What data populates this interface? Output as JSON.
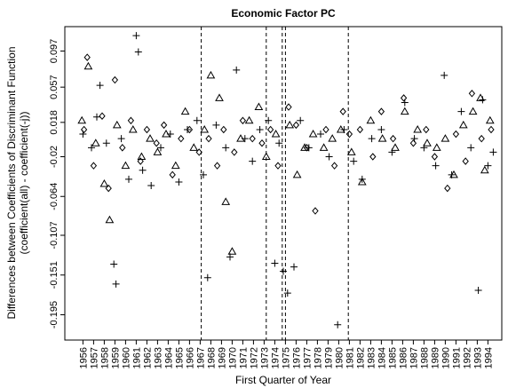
{
  "chart_data": {
    "type": "scatter",
    "title": "Economic Factor PC",
    "x_label": "First Quarter of Year",
    "y_label": [
      "Differences between Coefficients of Discriminant Function",
      "(coefficient(all) - coefficient(-j))"
    ],
    "xlim": [
      1954.3,
      1995.3
    ],
    "ylim": [
      -0.223,
      0.124
    ],
    "xticks": [
      1956,
      1957,
      1958,
      1959,
      1960,
      1961,
      1962,
      1963,
      1964,
      1965,
      1966,
      1967,
      1968,
      1969,
      1970,
      1971,
      1972,
      1973,
      1974,
      1975,
      1976,
      1977,
      1978,
      1979,
      1980,
      1981,
      1982,
      1983,
      1984,
      1985,
      1986,
      1987,
      1988,
      1989,
      1990,
      1991,
      1992,
      1993,
      1994
    ],
    "yticks": [
      -0.195,
      -0.151,
      -0.107,
      -0.064,
      -0.02,
      0.018,
      0.057,
      0.097
    ],
    "vlines": [
      1967.1,
      1973.2,
      1974.7,
      1975.0,
      1980.9
    ],
    "series": [
      {
        "marker": "plus",
        "color": "#000000",
        "x": [
          1956.0,
          1956.8,
          1957.3,
          1957.6,
          1958.2,
          1958.9,
          1959.1,
          1959.6,
          1960.3,
          1961.0,
          1961.2,
          1961.6,
          1962.4,
          1963.3,
          1964.2,
          1965.0,
          1965.8,
          1966.7,
          1967.3,
          1967.7,
          1968.5,
          1969.4,
          1969.8,
          1970.4,
          1971.2,
          1971.9,
          1972.6,
          1973.4,
          1974.0,
          1974.4,
          1974.8,
          1975.2,
          1975.8,
          1976.4,
          1977.2,
          1978.3,
          1979.1,
          1979.9,
          1980.5,
          1981.4,
          1982.2,
          1983.1,
          1984.0,
          1985.0,
          1986.2,
          1987.1,
          1988.0,
          1989.1,
          1989.9,
          1990.6,
          1991.5,
          1992.4,
          1993.1,
          1993.5,
          1994.0,
          1994.5
        ],
        "values": [
          0.005,
          -0.01,
          0.024,
          0.059,
          -0.005,
          -0.139,
          -0.161,
          0.0,
          -0.045,
          0.114,
          0.096,
          -0.035,
          -0.052,
          -0.01,
          0.005,
          -0.048,
          0.01,
          0.02,
          -0.04,
          -0.154,
          0.015,
          -0.01,
          -0.131,
          0.076,
          0.0,
          -0.025,
          0.01,
          0.02,
          -0.138,
          -0.005,
          -0.147,
          -0.171,
          -0.142,
          0.02,
          -0.01,
          0.005,
          -0.02,
          -0.206,
          0.01,
          -0.025,
          -0.045,
          0.0,
          0.01,
          -0.015,
          0.04,
          0.0,
          -0.01,
          -0.03,
          0.07,
          -0.04,
          0.03,
          -0.01,
          -0.168,
          0.043,
          -0.03,
          -0.015
        ]
      },
      {
        "marker": "triangle",
        "color": "#000000",
        "x": [
          1955.9,
          1956.5,
          1957.2,
          1958.0,
          1958.5,
          1959.2,
          1960.0,
          1960.7,
          1961.5,
          1962.3,
          1963.0,
          1963.8,
          1964.7,
          1965.6,
          1966.4,
          1967.4,
          1968.0,
          1968.8,
          1969.4,
          1970.0,
          1970.8,
          1971.6,
          1972.5,
          1973.2,
          1974.1,
          1975.4,
          1976.1,
          1976.8,
          1977.6,
          1978.6,
          1979.4,
          1980.2,
          1981.2,
          1982.2,
          1983.0,
          1984.1,
          1985.3,
          1986.2,
          1987.4,
          1988.3,
          1989.2,
          1990.0,
          1990.8,
          1991.7,
          1992.6,
          1993.3,
          1993.7,
          1994.2
        ],
        "values": [
          0.02,
          0.08,
          -0.005,
          -0.05,
          -0.09,
          0.015,
          -0.03,
          0.01,
          -0.02,
          0.0,
          -0.015,
          0.005,
          -0.03,
          0.03,
          -0.01,
          0.01,
          0.07,
          0.045,
          -0.07,
          -0.125,
          0.0,
          0.02,
          0.035,
          -0.02,
          0.005,
          0.015,
          -0.04,
          -0.01,
          0.005,
          -0.01,
          0.0,
          0.01,
          -0.015,
          -0.048,
          0.02,
          0.0,
          -0.01,
          0.03,
          0.01,
          -0.005,
          -0.01,
          0.0,
          -0.04,
          0.015,
          0.03,
          0.045,
          -0.035,
          0.02
        ]
      },
      {
        "marker": "diamond",
        "color": "#000000",
        "x": [
          1956.1,
          1956.4,
          1957.0,
          1957.8,
          1958.4,
          1959.0,
          1959.7,
          1960.5,
          1961.4,
          1962.0,
          1962.9,
          1963.6,
          1964.4,
          1965.2,
          1966.0,
          1966.9,
          1967.8,
          1968.6,
          1969.2,
          1970.2,
          1971.0,
          1971.9,
          1972.8,
          1973.6,
          1974.3,
          1975.3,
          1976.0,
          1977.0,
          1977.8,
          1978.8,
          1979.6,
          1980.4,
          1981.0,
          1982.0,
          1983.2,
          1984.0,
          1985.1,
          1986.1,
          1987.0,
          1988.2,
          1989.0,
          1990.2,
          1991.0,
          1991.9,
          1992.5,
          1993.4,
          1994.3
        ],
        "values": [
          0.01,
          0.09,
          -0.03,
          0.025,
          -0.055,
          0.065,
          -0.01,
          0.02,
          -0.025,
          0.01,
          -0.005,
          0.015,
          -0.04,
          0.0,
          0.01,
          -0.015,
          0.0,
          -0.03,
          0.01,
          -0.015,
          0.02,
          0.0,
          -0.005,
          0.01,
          -0.03,
          0.035,
          0.015,
          -0.01,
          -0.08,
          0.01,
          -0.03,
          0.03,
          0.005,
          0.01,
          -0.02,
          0.03,
          0.0,
          0.045,
          -0.005,
          0.01,
          -0.02,
          -0.055,
          0.005,
          -0.025,
          0.05,
          0.0,
          0.01
        ]
      }
    ]
  }
}
